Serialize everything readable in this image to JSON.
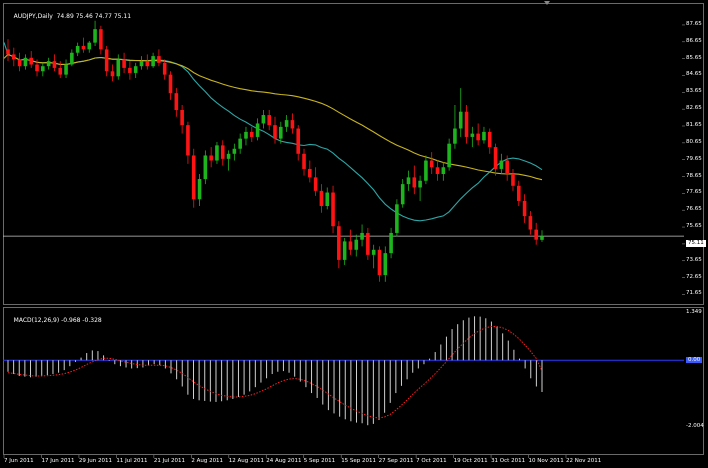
{
  "window": {
    "symbol_timeframe": "AUDJPY,Daily",
    "ohlc_text": "74.89 75.46 74.77 75.11",
    "current_price_label": "75.11"
  },
  "indicator": {
    "title": "MACD(12,26,9)",
    "values_text": "-0.968 -0.328",
    "y_labels": [
      "1.349",
      "0.00",
      "-2.004"
    ],
    "zero_label_color": "#3a5cff"
  },
  "price_axis": {
    "labels": [
      "87.65",
      "86.65",
      "85.65",
      "84.65",
      "83.65",
      "82.65",
      "81.65",
      "80.65",
      "79.65",
      "78.65",
      "77.65",
      "76.65",
      "75.65",
      "74.65",
      "73.65",
      "72.65",
      "71.65"
    ]
  },
  "time_axis": {
    "labels": [
      "7 Jun 2011",
      "17 Jun 2011",
      "29 Jun 2011",
      "11 Jul 2011",
      "21 Jul 2011",
      "2 Aug 2011",
      "12 Aug 2011",
      "24 Aug 2011",
      "5 Sep 2011",
      "15 Sep 2011",
      "27 Sep 2011",
      "7 Oct 2011",
      "19 Oct 2011",
      "31 Oct 2011",
      "10 Nov 2011",
      "22 Nov 2011"
    ]
  },
  "colors": {
    "bull": "#1eb41e",
    "bear": "#ff1414",
    "ma_fast": "#2ea6a6",
    "ma_slow": "#c8b41e",
    "signal": "#ff2020",
    "histogram": "#d0d0d0",
    "zero_line": "#2a3cff",
    "price_line": "#c8c8c8"
  },
  "chart_data": [
    {
      "type": "candlestick",
      "title": "AUDJPY,Daily",
      "ylim": [
        71.2,
        88.3
      ],
      "price_line": 75.11,
      "series": [
        {
          "name": "candles",
          "candles": [
            [
              86.2,
              86.8,
              85.5,
              85.9
            ],
            [
              85.9,
              86.3,
              85.2,
              85.6
            ],
            [
              85.6,
              86.0,
              84.9,
              85.2
            ],
            [
              85.2,
              85.9,
              85.0,
              85.7
            ],
            [
              85.7,
              86.1,
              85.1,
              85.3
            ],
            [
              85.3,
              85.6,
              84.6,
              84.9
            ],
            [
              84.9,
              85.4,
              84.6,
              85.2
            ],
            [
              85.2,
              85.7,
              85.0,
              85.5
            ],
            [
              85.5,
              85.9,
              84.9,
              85.1
            ],
            [
              85.1,
              85.5,
              84.5,
              84.7
            ],
            [
              84.7,
              85.6,
              84.5,
              85.3
            ],
            [
              85.3,
              86.2,
              85.2,
              86.0
            ],
            [
              86.0,
              86.6,
              85.8,
              86.4
            ],
            [
              86.4,
              86.9,
              86.0,
              86.2
            ],
            [
              86.2,
              86.7,
              86.0,
              86.6
            ],
            [
              86.6,
              87.9,
              86.4,
              87.4
            ],
            [
              87.4,
              87.6,
              85.9,
              86.2
            ],
            [
              86.2,
              86.4,
              84.6,
              84.9
            ],
            [
              84.9,
              85.3,
              84.3,
              84.6
            ],
            [
              84.6,
              85.9,
              84.4,
              85.6
            ],
            [
              85.6,
              86.0,
              84.8,
              85.1
            ],
            [
              85.1,
              85.5,
              84.4,
              84.8
            ],
            [
              84.8,
              85.4,
              84.5,
              85.2
            ],
            [
              85.2,
              85.8,
              85.0,
              85.5
            ],
            [
              85.5,
              85.9,
              85.0,
              85.2
            ],
            [
              85.2,
              86.0,
              85.1,
              85.8
            ],
            [
              85.8,
              86.2,
              85.2,
              85.4
            ],
            [
              85.4,
              85.6,
              84.4,
              84.7
            ],
            [
              84.7,
              84.9,
              83.2,
              83.6
            ],
            [
              83.6,
              83.9,
              82.2,
              82.6
            ],
            [
              82.6,
              82.9,
              81.2,
              81.7
            ],
            [
              81.7,
              81.9,
              79.4,
              79.9
            ],
            [
              79.9,
              80.3,
              76.8,
              77.3
            ],
            [
              77.3,
              78.8,
              76.9,
              78.5
            ],
            [
              78.5,
              80.2,
              78.2,
              79.9
            ],
            [
              79.9,
              80.4,
              79.2,
              79.6
            ],
            [
              79.6,
              80.7,
              79.4,
              80.5
            ],
            [
              80.5,
              80.8,
              79.3,
              79.7
            ],
            [
              79.7,
              80.2,
              79.0,
              80.0
            ],
            [
              80.0,
              80.6,
              79.6,
              80.3
            ],
            [
              80.3,
              81.2,
              80.0,
              80.9
            ],
            [
              80.9,
              81.6,
              80.5,
              81.3
            ],
            [
              81.3,
              81.6,
              80.7,
              81.0
            ],
            [
              81.0,
              82.1,
              80.8,
              81.8
            ],
            [
              81.8,
              82.6,
              81.5,
              82.3
            ],
            [
              82.3,
              82.6,
              81.4,
              81.7
            ],
            [
              81.7,
              82.2,
              80.6,
              80.9
            ],
            [
              80.9,
              81.9,
              80.6,
              81.6
            ],
            [
              81.6,
              82.3,
              81.3,
              82.0
            ],
            [
              82.0,
              82.4,
              81.2,
              81.5
            ],
            [
              81.5,
              81.7,
              79.6,
              80.0
            ],
            [
              80.0,
              80.3,
              78.7,
              79.1
            ],
            [
              79.1,
              79.6,
              78.3,
              78.6
            ],
            [
              78.6,
              79.2,
              77.5,
              77.8
            ],
            [
              77.8,
              78.2,
              76.5,
              76.9
            ],
            [
              76.9,
              78.0,
              76.7,
              77.7
            ],
            [
              77.7,
              78.1,
              75.3,
              75.7
            ],
            [
              75.7,
              76.0,
              73.2,
              73.7
            ],
            [
              73.7,
              75.0,
              73.4,
              74.8
            ],
            [
              74.8,
              75.5,
              74.0,
              74.3
            ],
            [
              74.3,
              75.2,
              73.9,
              74.9
            ],
            [
              74.9,
              75.8,
              74.5,
              75.3
            ],
            [
              75.3,
              75.6,
              73.7,
              74.0
            ],
            [
              74.0,
              74.6,
              73.2,
              74.3
            ],
            [
              74.3,
              74.5,
              72.4,
              72.8
            ],
            [
              72.8,
              74.5,
              72.4,
              74.1
            ],
            [
              74.1,
              75.6,
              73.8,
              75.3
            ],
            [
              75.3,
              77.3,
              75.1,
              77.0
            ],
            [
              77.0,
              78.5,
              76.8,
              78.2
            ],
            [
              78.2,
              79.0,
              77.8,
              78.6
            ],
            [
              78.6,
              79.3,
              77.6,
              78.0
            ],
            [
              78.0,
              78.7,
              77.2,
              78.4
            ],
            [
              78.4,
              79.9,
              78.2,
              79.6
            ],
            [
              79.6,
              80.1,
              78.8,
              79.2
            ],
            [
              79.2,
              79.6,
              78.4,
              78.8
            ],
            [
              78.8,
              79.5,
              78.4,
              79.2
            ],
            [
              79.2,
              80.9,
              79.0,
              80.6
            ],
            [
              80.6,
              82.9,
              80.3,
              81.5
            ],
            [
              81.5,
              83.9,
              81.0,
              82.5
            ],
            [
              82.5,
              82.9,
              80.6,
              81.0
            ],
            [
              81.0,
              81.6,
              80.4,
              81.2
            ],
            [
              81.2,
              81.8,
              80.5,
              80.8
            ],
            [
              80.8,
              81.6,
              80.6,
              81.3
            ],
            [
              81.3,
              81.5,
              80.0,
              80.4
            ],
            [
              80.4,
              80.6,
              78.7,
              79.1
            ],
            [
              79.1,
              80.0,
              78.8,
              79.6
            ],
            [
              79.6,
              79.9,
              78.4,
              78.8
            ],
            [
              78.8,
              79.1,
              77.8,
              78.1
            ],
            [
              78.1,
              78.4,
              76.9,
              77.2
            ],
            [
              77.2,
              77.6,
              75.9,
              76.3
            ],
            [
              76.3,
              76.6,
              75.2,
              75.5
            ],
            [
              75.5,
              75.9,
              74.6,
              74.9
            ],
            [
              74.89,
              75.46,
              74.77,
              75.11
            ]
          ]
        },
        {
          "name": "MA fast"
        },
        {
          "name": "MA slow"
        }
      ]
    },
    {
      "type": "bar",
      "title": "MACD(12,26,9)",
      "ylim": [
        -2.004,
        1.349
      ],
      "series": [
        {
          "name": "MACD",
          "values": [
            -0.35,
            -0.42,
            -0.48,
            -0.5,
            -0.52,
            -0.5,
            -0.47,
            -0.45,
            -0.42,
            -0.38,
            -0.3,
            -0.18,
            -0.05,
            0.08,
            0.22,
            0.3,
            0.28,
            0.15,
            -0.02,
            -0.12,
            -0.18,
            -0.22,
            -0.25,
            -0.24,
            -0.22,
            -0.15,
            -0.12,
            -0.15,
            -0.25,
            -0.4,
            -0.58,
            -0.8,
            -1.05,
            -1.18,
            -1.22,
            -1.24,
            -1.26,
            -1.27,
            -1.25,
            -1.22,
            -1.18,
            -1.12,
            -1.05,
            -0.95,
            -0.82,
            -0.68,
            -0.55,
            -0.42,
            -0.35,
            -0.33,
            -0.38,
            -0.5,
            -0.65,
            -0.82,
            -1.0,
            -1.15,
            -1.35,
            -1.52,
            -1.62,
            -1.72,
            -1.8,
            -1.86,
            -1.9,
            -1.92,
            -1.98,
            -1.94,
            -1.82,
            -1.6,
            -1.3,
            -1.0,
            -0.78,
            -0.58,
            -0.38,
            -0.25,
            -0.12,
            0.05,
            0.25,
            0.48,
            0.72,
            0.95,
            1.1,
            1.22,
            1.3,
            1.34,
            1.33,
            1.28,
            1.18,
            1.02,
            0.82,
            0.6,
            0.32,
            0.05,
            -0.25,
            -0.55,
            -0.8,
            -0.968
          ]
        },
        {
          "name": "Signal",
          "values": [
            -0.38,
            -0.4,
            -0.43,
            -0.45,
            -0.47,
            -0.48,
            -0.48,
            -0.47,
            -0.46,
            -0.44,
            -0.41,
            -0.36,
            -0.3,
            -0.22,
            -0.13,
            -0.05,
            0.02,
            0.06,
            0.06,
            0.03,
            -0.02,
            -0.06,
            -0.1,
            -0.13,
            -0.15,
            -0.15,
            -0.15,
            -0.15,
            -0.17,
            -0.22,
            -0.3,
            -0.4,
            -0.53,
            -0.66,
            -0.77,
            -0.87,
            -0.95,
            -1.02,
            -1.07,
            -1.1,
            -1.12,
            -1.12,
            -1.1,
            -1.07,
            -1.02,
            -0.95,
            -0.87,
            -0.78,
            -0.69,
            -0.62,
            -0.57,
            -0.56,
            -0.58,
            -0.63,
            -0.71,
            -0.8,
            -0.91,
            -1.03,
            -1.15,
            -1.26,
            -1.37,
            -1.46,
            -1.55,
            -1.62,
            -1.69,
            -1.74,
            -1.76,
            -1.73,
            -1.65,
            -1.52,
            -1.37,
            -1.21,
            -1.04,
            -0.88,
            -0.73,
            -0.57,
            -0.41,
            -0.23,
            -0.04,
            0.16,
            0.35,
            0.52,
            0.68,
            0.81,
            0.92,
            0.99,
            1.03,
            1.03,
            0.99,
            0.91,
            0.79,
            0.64,
            0.46,
            0.26,
            0.05,
            -0.328
          ]
        }
      ]
    }
  ]
}
